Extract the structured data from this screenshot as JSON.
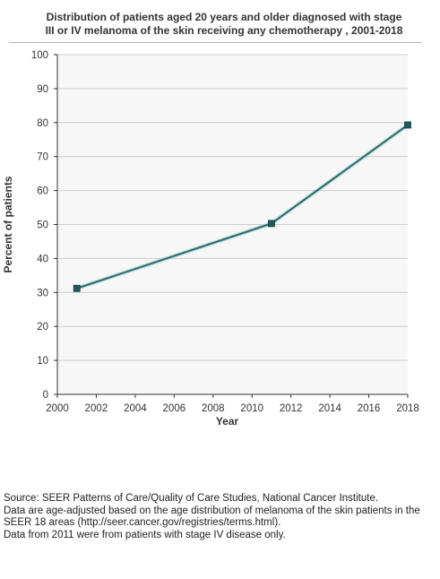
{
  "title_lines": [
    "Distribution of patients aged 20 years and older diagnosed with stage",
    "III or IV melanoma of the skin receiving any chemotherapy , 2001-2018"
  ],
  "footnotes": [
    "Source: SEER Patterns of Care/Quality of Care Studies, National Cancer Institute.",
    "Data are age-adjusted based on the age distribution of melanoma of the skin patients in the",
    "SEER 18 areas (http://seer.cancer.gov/registries/terms.html).",
    "Data from 2011 were from patients with stage IV disease only."
  ],
  "chart_data": {
    "type": "line",
    "title": "Distribution of patients aged 20 years and older diagnosed with stage III or IV melanoma of the skin receiving any chemotherapy , 2001-2018",
    "xlabel": "Year",
    "ylabel": "Percent of patients",
    "xlim": [
      2000,
      2018
    ],
    "ylim": [
      0,
      100
    ],
    "xticks": [
      2000,
      2002,
      2004,
      2006,
      2008,
      2010,
      2012,
      2014,
      2016,
      2018
    ],
    "yticks": [
      0,
      10,
      20,
      30,
      40,
      50,
      60,
      70,
      80,
      90,
      100
    ],
    "grid": "horizontal",
    "series": [
      {
        "x": [
          2001,
          2011,
          2018
        ],
        "y": [
          31.2,
          50.3,
          79.3
        ]
      }
    ],
    "colors": {
      "line": "#2a6b6b",
      "marker": "#1f5a57",
      "plot_bg": "#f7f7f7",
      "grid": "#cccccc"
    }
  }
}
